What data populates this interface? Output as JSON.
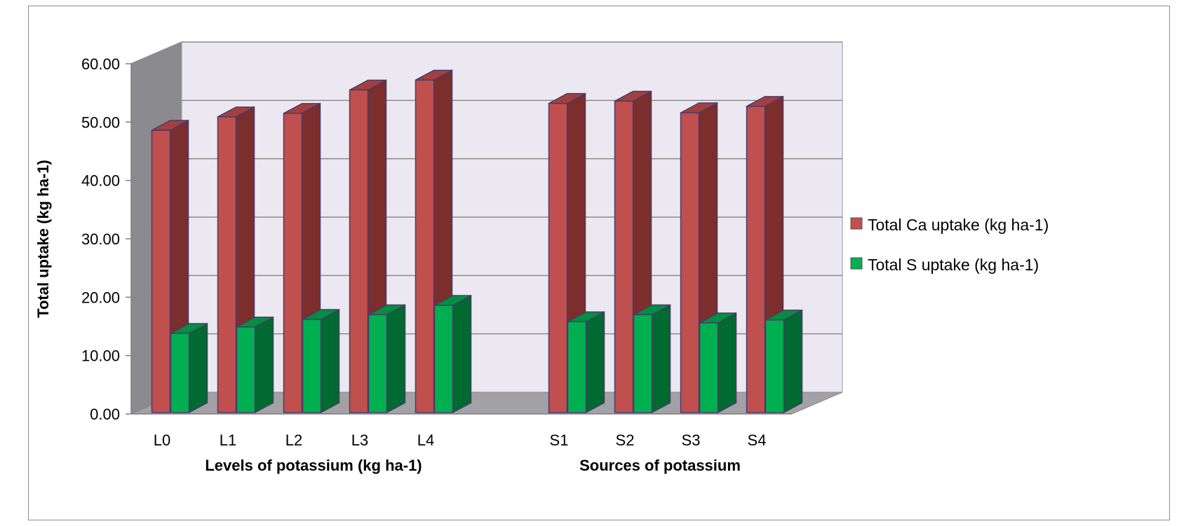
{
  "chart_data": {
    "type": "bar",
    "title": "",
    "ylabel": "Total uptake (kg ha-1)",
    "ylim": [
      0,
      60
    ],
    "y_ticks": [
      "0.00",
      "10.00",
      "20.00",
      "30.00",
      "40.00",
      "50.00",
      "60.00"
    ],
    "grid": true,
    "legend_position": "right",
    "groups": [
      {
        "xlabel": "Levels of potassium  (kg ha-1)",
        "categories": [
          "L0",
          "L1",
          "L2",
          "L3",
          "L4"
        ]
      },
      {
        "xlabel": "Sources of potassium",
        "categories": [
          "S1",
          "S2",
          "S3",
          "S4"
        ]
      }
    ],
    "categories": [
      "L0",
      "L1",
      "L2",
      "L3",
      "L4",
      "S1",
      "S2",
      "S3",
      "S4"
    ],
    "series": [
      {
        "name": "Total Ca uptake (kg ha-1)",
        "color": "#c0504d",
        "values": [
          48.6,
          50.9,
          51.5,
          55.5,
          57.2,
          53.2,
          53.6,
          51.6,
          52.7
        ]
      },
      {
        "name": "Total S uptake (kg ha-1)",
        "color": "#00b050",
        "values": [
          13.8,
          14.9,
          16.2,
          17.0,
          18.6,
          15.8,
          17.0,
          15.6,
          16.1
        ]
      }
    ]
  }
}
